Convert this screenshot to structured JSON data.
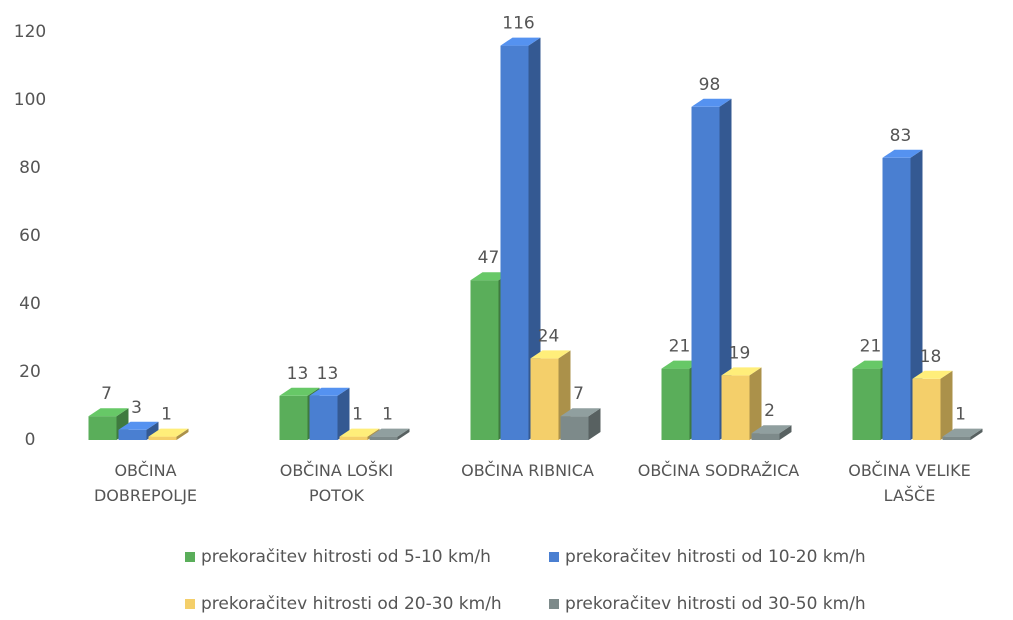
{
  "chart_data": {
    "type": "bar3d",
    "categories": [
      "OBČINA DOBREPOLJE",
      "OBČINA LOŠKI POTOK",
      "OBČINA RIBNICA",
      "OBČINA SODRAŽICA",
      "OBČINA VELIKE LAŠČE"
    ],
    "series": [
      {
        "name": "prekoračitev hitrosti od 5-10 km/h",
        "color": "#5aae5a",
        "values": [
          7,
          13,
          47,
          21,
          21
        ]
      },
      {
        "name": "prekoračitev hitrosti od 10-20 km/h",
        "color": "#4a7fd1",
        "values": [
          3,
          13,
          116,
          98,
          83
        ]
      },
      {
        "name": "prekoračitev hitrosti od 20-30 km/h",
        "color": "#f4cf6a",
        "values": [
          1,
          1,
          24,
          19,
          18
        ]
      },
      {
        "name": "prekoračitev hitrosti od 30-50 km/h",
        "color": "#7d8a8a",
        "values": [
          null,
          1,
          7,
          2,
          1
        ]
      }
    ],
    "ylim": [
      0,
      120
    ],
    "yticks": [
      0,
      20,
      40,
      60,
      80,
      100,
      120
    ],
    "grid": false
  }
}
